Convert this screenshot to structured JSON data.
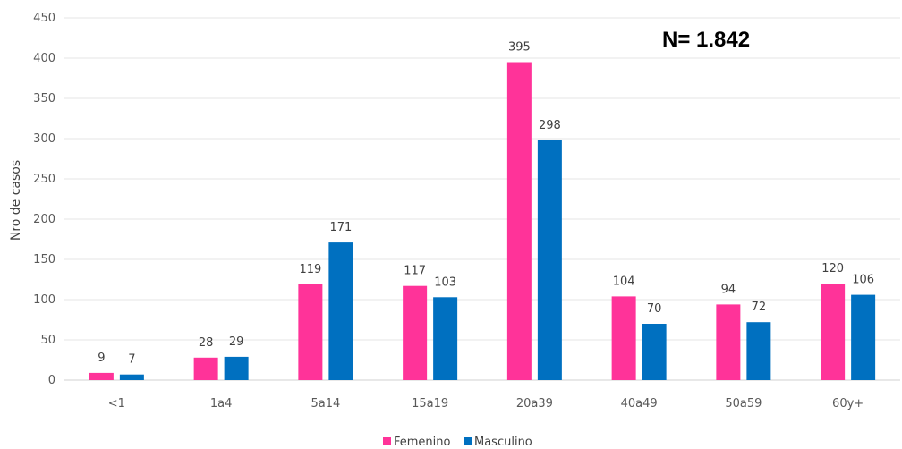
{
  "chart_data": {
    "type": "bar",
    "title": "",
    "annotation": "N= 1.842",
    "xlabel": "",
    "ylabel": "Nro de casos",
    "ylim": [
      0,
      450
    ],
    "yticks": [
      0,
      50,
      100,
      150,
      200,
      250,
      300,
      350,
      400,
      450
    ],
    "grid": true,
    "legend_position": "bottom",
    "categories": [
      "<1",
      "1a4",
      "5a14",
      "15a19",
      "20a39",
      "40a49",
      "50a59",
      "60y+"
    ],
    "series": [
      {
        "name": "Femenino",
        "color": "#FF3399",
        "values": [
          9,
          28,
          119,
          117,
          395,
          104,
          94,
          120
        ]
      },
      {
        "name": "Masculino",
        "color": "#0070C0",
        "values": [
          7,
          29,
          171,
          103,
          298,
          70,
          72,
          106
        ]
      }
    ]
  }
}
